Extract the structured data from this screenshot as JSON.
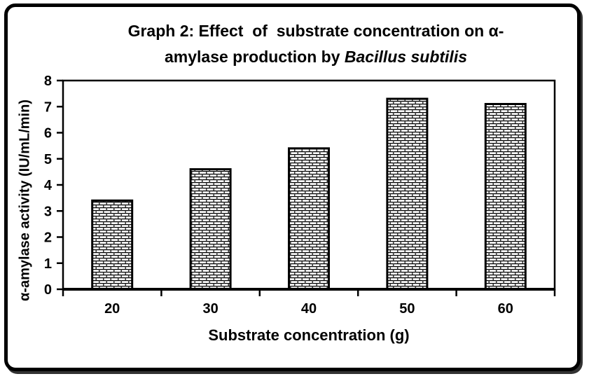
{
  "figure": {
    "title_part1": "Graph 2: Effect  of  substrate concentration on α-\namylase production by ",
    "title_part2_italic": "Bacillus subtilis"
  },
  "chart_data": {
    "type": "bar",
    "title": "Graph 2: Effect of substrate concentration on α-amylase production by Bacillus subtilis",
    "categories": [
      "20",
      "30",
      "40",
      "50",
      "60"
    ],
    "values": [
      3.4,
      4.6,
      5.4,
      7.3,
      7.1
    ],
    "xlabel": "Substrate concentration (g)",
    "ylabel": "α-amylase activity (IU/mL/min)",
    "ylim": [
      0,
      8
    ],
    "yticks": [
      0,
      1,
      2,
      3,
      4,
      5,
      6,
      7,
      8
    ],
    "grid": false,
    "legend": "none",
    "bar_fill": "brick-pattern",
    "ink_color": "#000000",
    "background_color": "#ffffff"
  }
}
